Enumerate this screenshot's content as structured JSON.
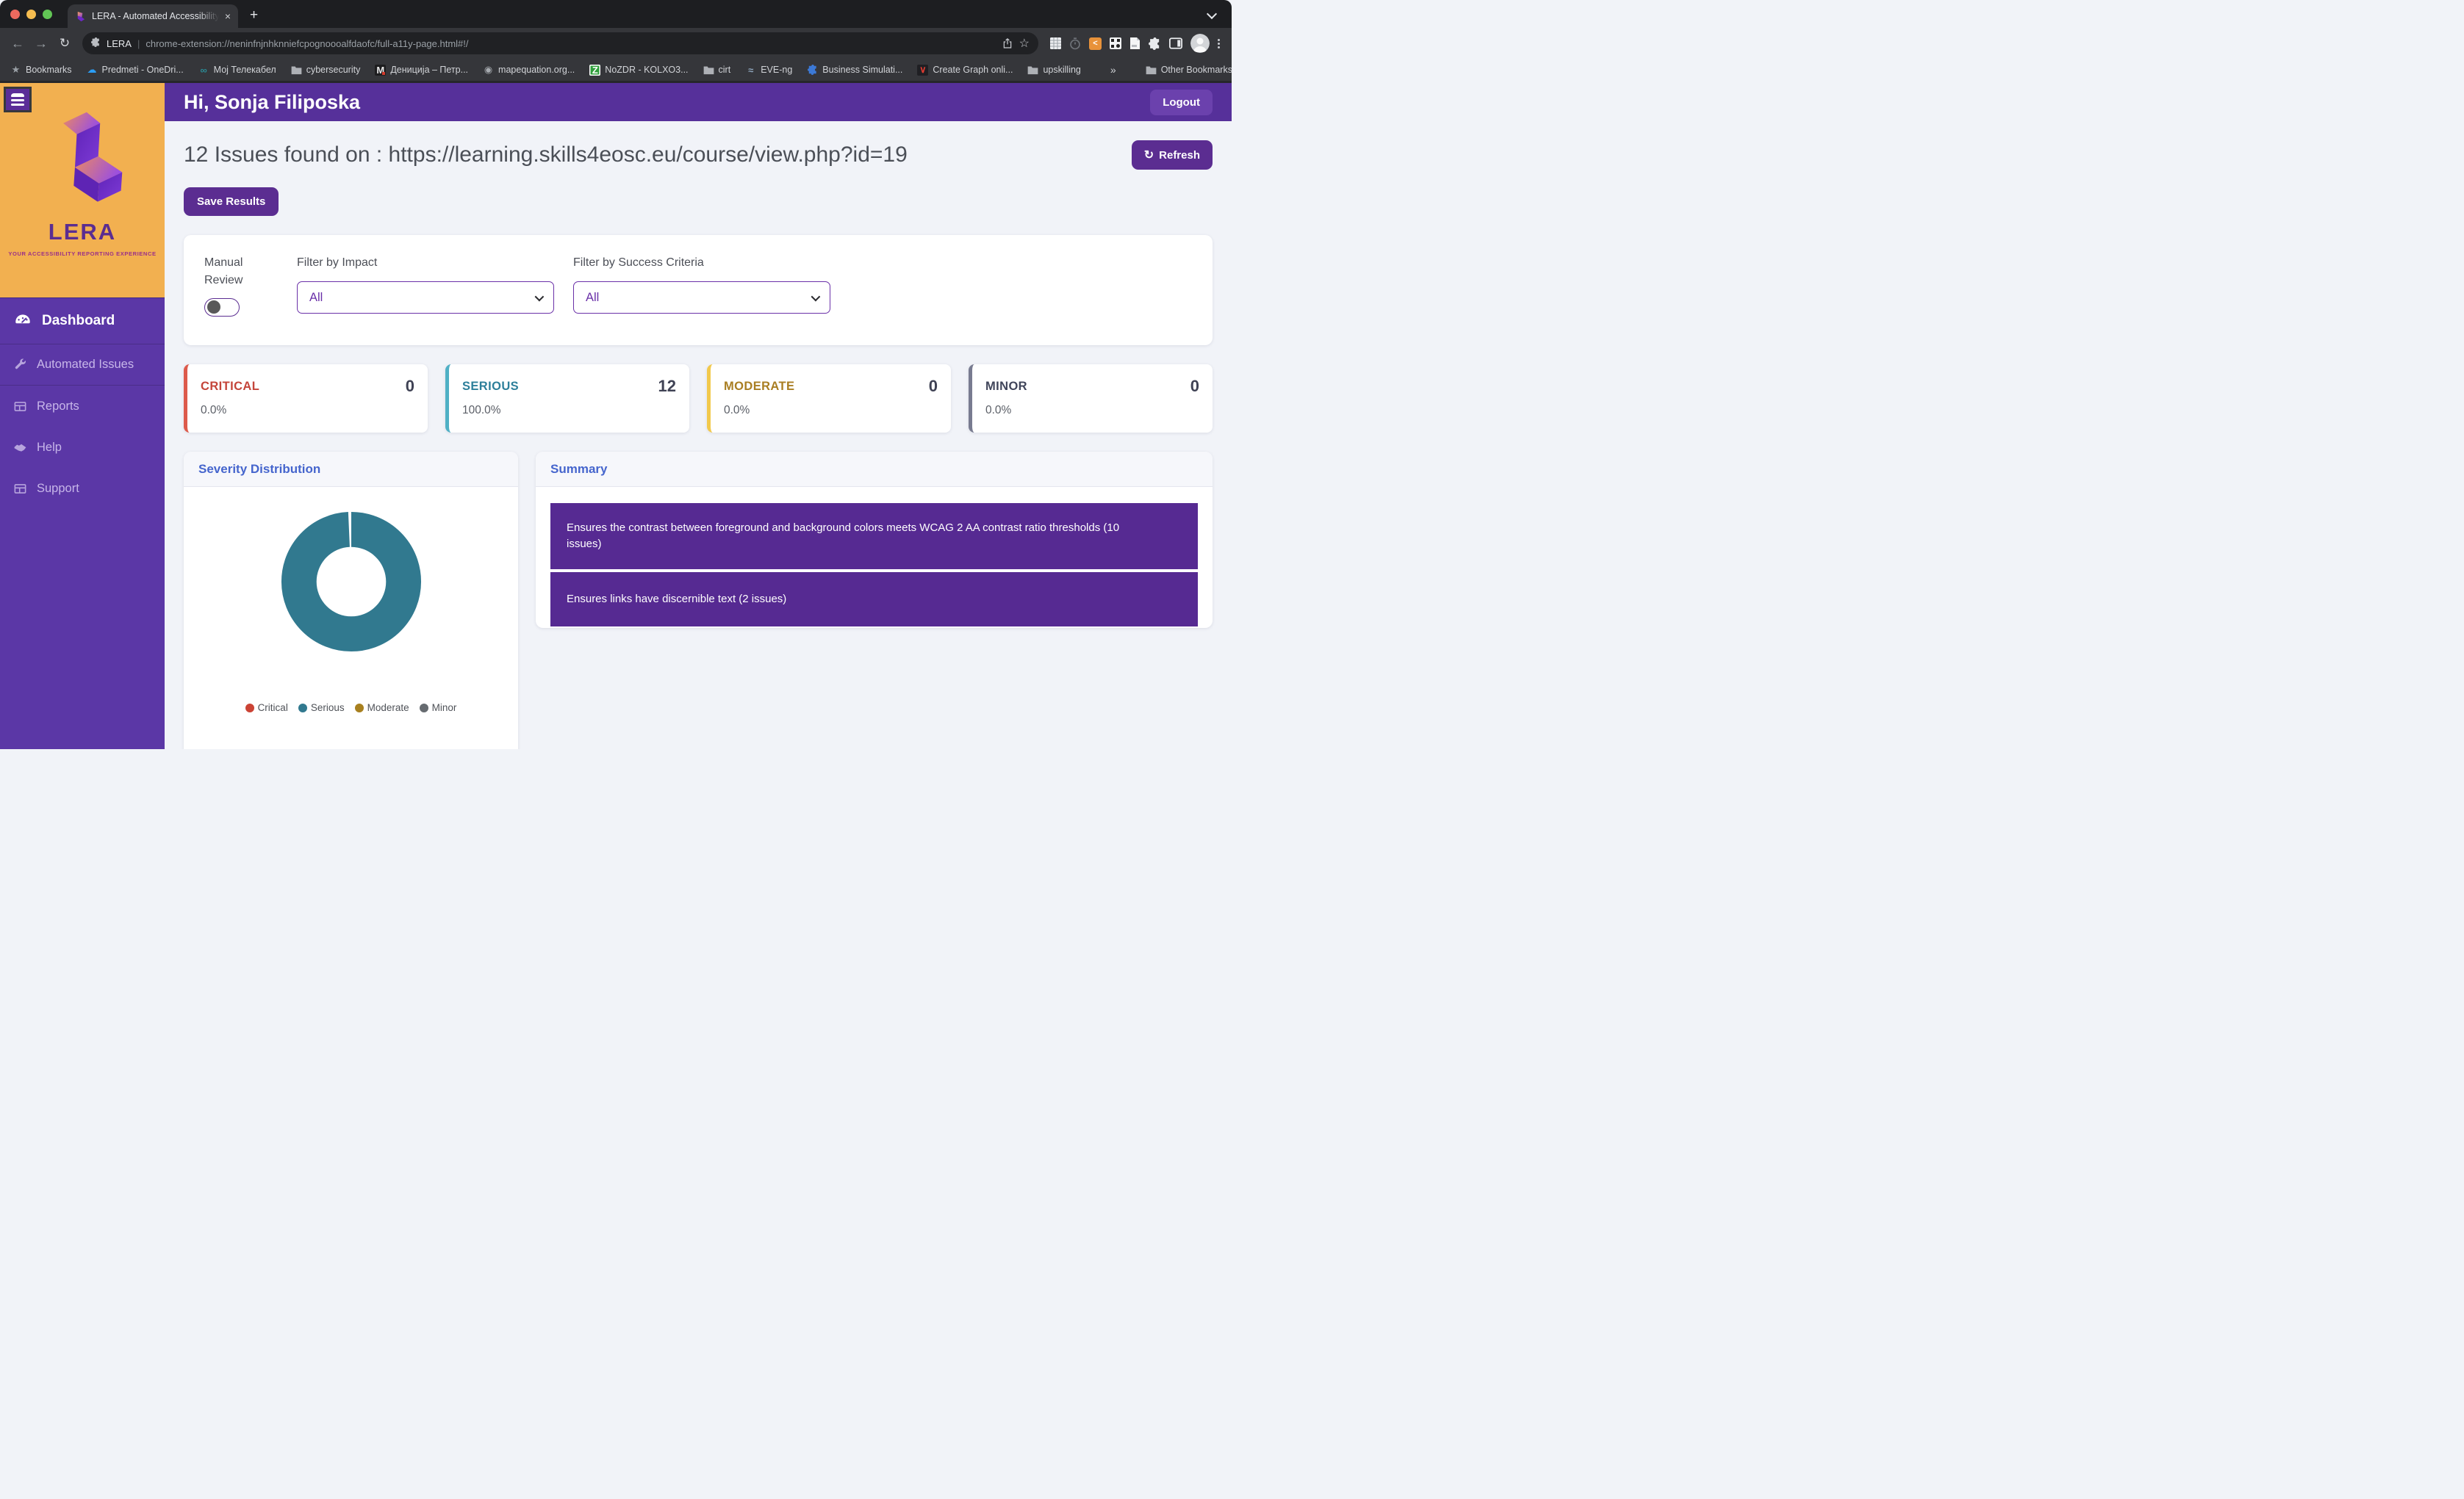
{
  "browser": {
    "tab_title": "LERA - Automated Accessibility",
    "url_label": "LERA",
    "url": "chrome-extension://neninfnjnhknniefcpognoooalfdaofc/full-a11y-page.html#!/",
    "bookmarks": [
      {
        "label": "Bookmarks",
        "icon": "star"
      },
      {
        "label": "Predmeti - OneDri...",
        "icon": "onedrive"
      },
      {
        "label": "Мој Телекабел",
        "icon": "infinity"
      },
      {
        "label": "cybersecurity",
        "icon": "folder"
      },
      {
        "label": "Дениција – Петр...",
        "icon": "mk"
      },
      {
        "label": "mapequation.org...",
        "icon": "globe"
      },
      {
        "label": "NoZDR - KOLXO3...",
        "icon": "z"
      },
      {
        "label": "cirt",
        "icon": "folder"
      },
      {
        "label": "EVE-ng",
        "icon": "eve"
      },
      {
        "label": "Business Simulati...",
        "icon": "puzzle"
      },
      {
        "label": "Create Graph onli...",
        "icon": "v"
      },
      {
        "label": "upskilling",
        "icon": "folder"
      },
      {
        "label": "»",
        "icon": "overflow"
      },
      {
        "label": "Other Bookmarks",
        "icon": "folder",
        "separator_before": true
      }
    ]
  },
  "sidebar": {
    "brand": "LERA",
    "tagline": "YOUR ACCESSIBILITY REPORTING EXPERIENCE",
    "items": [
      {
        "label": "Dashboard",
        "icon": "gauge-icon",
        "active": true,
        "divided": true
      },
      {
        "label": "Automated Issues",
        "icon": "wrench-icon",
        "divided": true
      },
      {
        "label": "Reports",
        "icon": "table-icon"
      },
      {
        "label": "Help",
        "icon": "handshake-icon"
      },
      {
        "label": "Support",
        "icon": "table-icon"
      }
    ]
  },
  "header": {
    "greeting": "Hi, Sonja Filiposka",
    "logout_label": "Logout"
  },
  "main": {
    "title": "12 Issues found on : https://learning.skills4eosc.eu/course/view.php?id=19",
    "refresh_label": "Refresh",
    "save_label": "Save Results",
    "filters": {
      "manual_review_label": "Manual Review",
      "manual_review_state": "off",
      "impact_label": "Filter by Impact",
      "impact_value": "All",
      "criteria_label": "Filter by Success Criteria",
      "criteria_value": "All"
    },
    "stats": [
      {
        "label": "CRITICAL",
        "count": "0",
        "percent": "0.0%",
        "color": "#c4453a",
        "border": "#dd5a4b"
      },
      {
        "label": "SERIOUS",
        "count": "12",
        "percent": "100.0%",
        "color": "#2d7f9a",
        "border": "#4fb0c5"
      },
      {
        "label": "MODERATE",
        "count": "0",
        "percent": "0.0%",
        "color": "#a97e22",
        "border": "#f2c94c"
      },
      {
        "label": "MINOR",
        "count": "0",
        "percent": "0.0%",
        "color": "#40455a",
        "border": "#787b90"
      }
    ],
    "severity_panel": {
      "title": "Severity Distribution"
    },
    "summary_panel": {
      "title": "Summary",
      "items": [
        "Ensures the contrast between foreground and background colors meets WCAG 2 AA contrast ratio thresholds (10 issues)",
        "Ensures links have discernible text (2 issues)"
      ]
    }
  },
  "chart_data": {
    "type": "pie",
    "donut": true,
    "title": "Severity Distribution",
    "categories": [
      "Critical",
      "Serious",
      "Moderate",
      "Minor"
    ],
    "values": [
      0,
      12,
      0,
      0
    ],
    "colors": [
      "#cb4335",
      "#31798f",
      "#a8801f",
      "#666b70"
    ],
    "legend_position": "bottom"
  }
}
